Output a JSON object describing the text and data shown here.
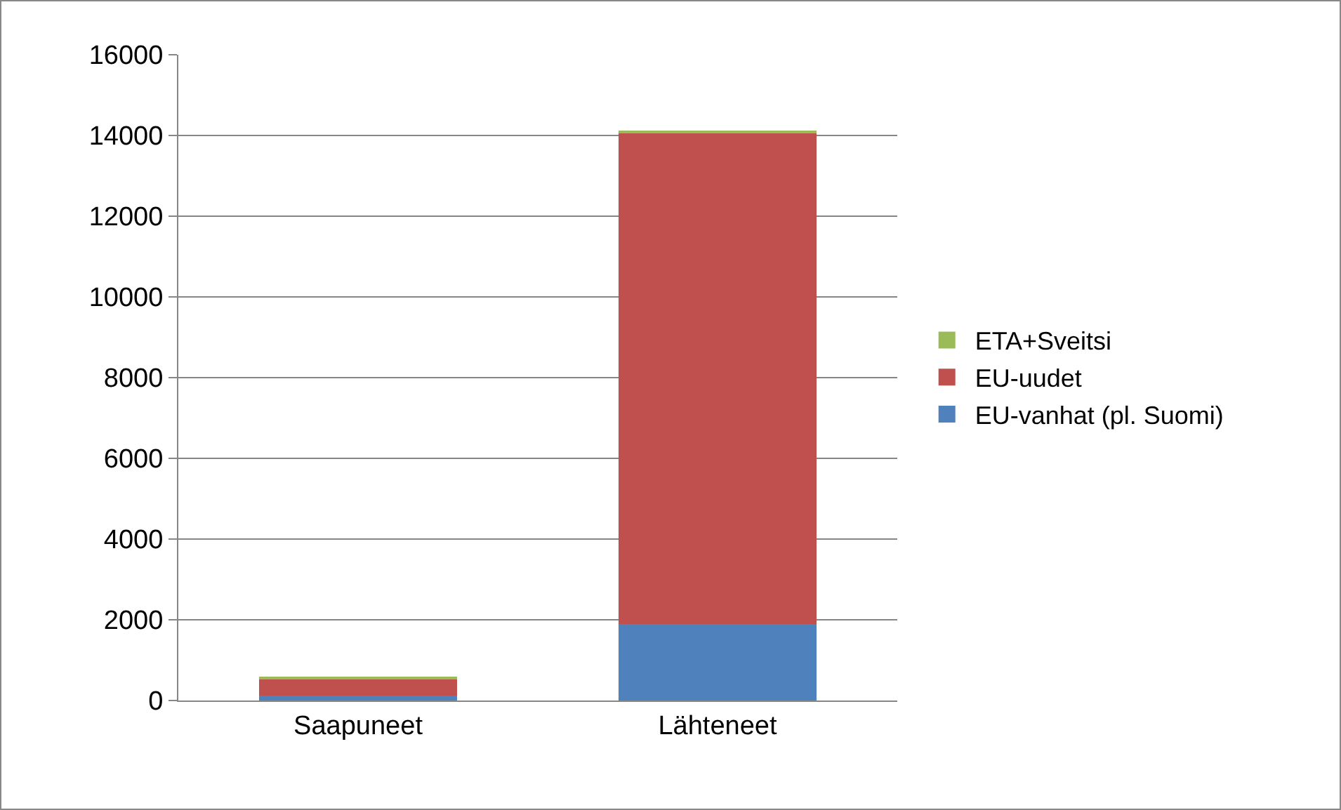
{
  "chart_data": {
    "type": "bar",
    "stacked": true,
    "categories": [
      "Saapuneet",
      "Lähteneet"
    ],
    "series": [
      {
        "name": "EU-vanhat (pl. Suomi)",
        "color": "#4f81bd",
        "values": [
          120,
          1900
        ]
      },
      {
        "name": "EU-uudet",
        "color": "#c0504d",
        "values": [
          400,
          12150
        ]
      },
      {
        "name": "ETA+Sveitsi",
        "color": "#9bbb59",
        "values": [
          70,
          70
        ]
      }
    ],
    "ylim": [
      0,
      16000
    ],
    "yticks": [
      0,
      2000,
      4000,
      6000,
      8000,
      10000,
      12000,
      14000,
      16000
    ],
    "grid": "y",
    "legend": "right"
  }
}
